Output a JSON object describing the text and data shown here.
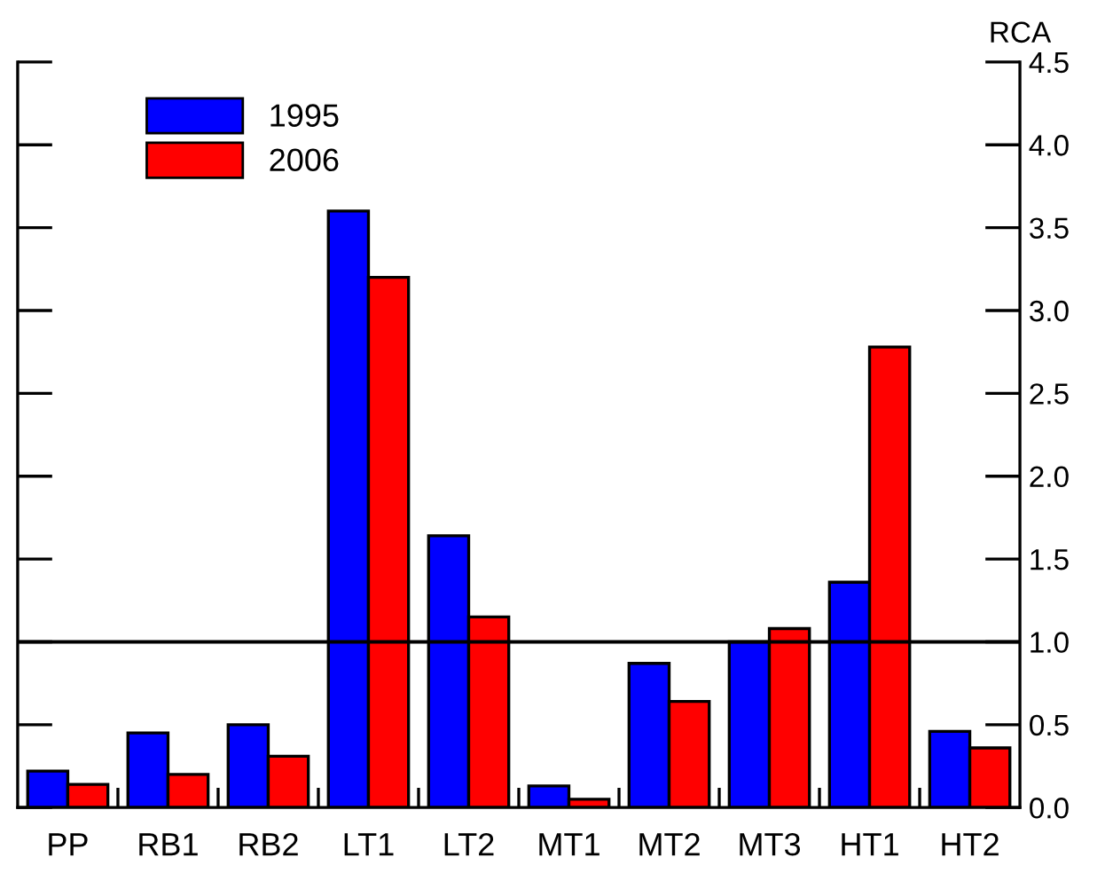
{
  "chart_data": {
    "type": "bar",
    "ylabel": "RCA",
    "categories": [
      "PP",
      "RB1",
      "RB2",
      "LT1",
      "LT2",
      "MT1",
      "MT2",
      "MT3",
      "HT1",
      "HT2"
    ],
    "series": [
      {
        "name": "1995",
        "color": "#0000ff",
        "values": [
          0.22,
          0.45,
          0.5,
          3.6,
          1.64,
          0.13,
          0.87,
          1.0,
          1.36,
          0.46
        ]
      },
      {
        "name": "2006",
        "color": "#ff0000",
        "values": [
          0.14,
          0.2,
          0.31,
          3.2,
          1.15,
          0.05,
          0.64,
          1.08,
          2.78,
          0.36
        ]
      }
    ],
    "ylim": [
      0,
      4.5
    ],
    "yticks": [
      {
        "value": 0,
        "label": "0.0"
      },
      0.5,
      {
        "value": 1,
        "label": "1.0"
      },
      1.5,
      {
        "value": 2,
        "label": "2.0"
      },
      2.5,
      {
        "value": 3,
        "label": "3.0"
      },
      3.5,
      {
        "value": 4,
        "label": "4.0"
      },
      4.5
    ],
    "ref_lines": [
      {
        "axis": "y",
        "value": 1.0,
        "color": "#000000"
      }
    ],
    "legend": "top left",
    "grid": false
  }
}
